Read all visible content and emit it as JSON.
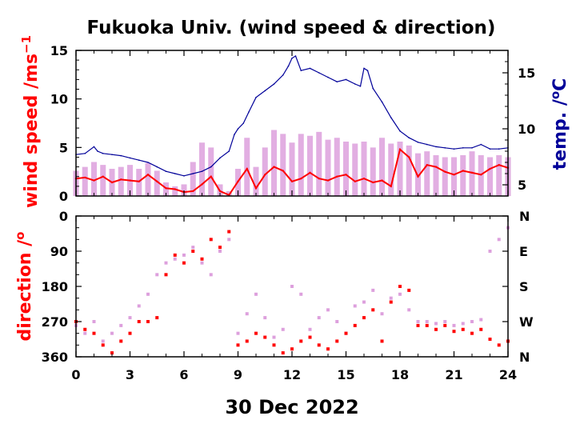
{
  "chart_data": [
    {
      "type": "line",
      "title": "Fukuoka Univ. (wind speed & direction)",
      "xlabel": "30 Dec 2022",
      "x_ticks": [
        "0",
        "3",
        "6",
        "9",
        "12",
        "15",
        "18",
        "21",
        "24"
      ],
      "xlim": [
        0,
        24
      ],
      "ylabel_left": "wind speed /ms",
      "ylabel_left_superscript": "−1",
      "ylim_left": [
        0,
        15
      ],
      "y_ticks_left": [
        "0",
        "5",
        "10",
        "15"
      ],
      "ylabel_right": "temp. /",
      "ylabel_right_superscript": "o",
      "ylabel_right_suffix": "C",
      "ylim_right": [
        4,
        17
      ],
      "y_ticks_right": [
        "5",
        "10",
        "15"
      ],
      "series": [
        {
          "color": "#ff0000",
          "axis": "left",
          "x": [
            0,
            0.5,
            1,
            1.5,
            2,
            2.5,
            3,
            3.5,
            4,
            4.5,
            5,
            5.5,
            6,
            6.5,
            7,
            7.5,
            8,
            8.5,
            9,
            9.5,
            10,
            10.5,
            11,
            11.5,
            12,
            12.5,
            13,
            13.5,
            14,
            14.5,
            15,
            15.5,
            16,
            16.5,
            17,
            17.5,
            18,
            18.5,
            19,
            19.5,
            20,
            20.5,
            21,
            21.5,
            22,
            22.5,
            23,
            23.5,
            24
          ],
          "values": [
            1.8,
            1.9,
            1.6,
            2.0,
            1.4,
            1.7,
            1.6,
            1.5,
            2.2,
            1.5,
            0.8,
            0.7,
            0.4,
            0.5,
            1.2,
            2.0,
            0.5,
            0.1,
            1.5,
            2.8,
            0.8,
            2.2,
            3.0,
            2.6,
            1.5,
            1.8,
            2.4,
            1.8,
            1.6,
            2.0,
            2.2,
            1.5,
            1.8,
            1.4,
            1.6,
            1.0,
            4.8,
            4.0,
            2.0,
            3.2,
            3.0,
            2.5,
            2.2,
            2.6,
            2.4,
            2.2,
            2.8,
            3.2,
            2.9
          ]
        },
        {
          "color": "#dda0dd",
          "axis": "left",
          "x": [
            0,
            0.5,
            1,
            1.5,
            2,
            2.5,
            3,
            3.5,
            4,
            4.5,
            5,
            5.5,
            6,
            6.5,
            7,
            7.5,
            8,
            8.5,
            9,
            9.5,
            10,
            10.5,
            11,
            11.5,
            12,
            12.5,
            13,
            13.5,
            14,
            14.5,
            15,
            15.5,
            16,
            16.5,
            17,
            17.5,
            18,
            18.5,
            19,
            19.5,
            20,
            20.5,
            21,
            21.5,
            22,
            22.5,
            23,
            23.5,
            24
          ],
          "values": [
            2.6,
            3.0,
            3.5,
            3.2,
            2.8,
            3.0,
            3.2,
            2.8,
            3.4,
            2.6,
            1.4,
            1.0,
            1.2,
            3.5,
            5.5,
            5.0,
            1.2,
            0.5,
            2.8,
            6.0,
            3.0,
            5.0,
            6.8,
            6.4,
            5.5,
            6.4,
            6.2,
            6.6,
            5.8,
            6.0,
            5.6,
            5.4,
            5.6,
            5.0,
            6.0,
            5.4,
            5.6,
            5.2,
            4.4,
            4.6,
            4.2,
            4.0,
            4.0,
            4.2,
            4.6,
            4.2,
            4.0,
            4.2,
            4.0
          ]
        },
        {
          "color": "#000099",
          "axis": "right",
          "x": [
            0,
            0.5,
            1,
            1.2,
            1.5,
            2,
            2.5,
            3,
            3.5,
            4,
            4.5,
            5,
            5.5,
            6,
            6.5,
            7,
            7.5,
            8,
            8.5,
            8.8,
            9,
            9.3,
            9.6,
            10,
            10.5,
            11,
            11.5,
            11.8,
            12,
            12.2,
            12.5,
            13,
            13.5,
            14,
            14.5,
            15,
            15.5,
            15.8,
            16,
            16.2,
            16.5,
            17,
            17.5,
            18,
            18.5,
            19,
            19.5,
            20,
            20.5,
            21,
            21.5,
            22,
            22.5,
            23,
            23.5,
            24
          ],
          "values": [
            7.7,
            7.8,
            8.4,
            8.0,
            7.8,
            7.7,
            7.6,
            7.4,
            7.2,
            7.0,
            6.6,
            6.2,
            6.0,
            5.8,
            6.0,
            6.2,
            6.6,
            7.4,
            8.0,
            9.5,
            10.0,
            10.5,
            11.5,
            12.8,
            13.4,
            14.0,
            14.8,
            15.6,
            16.3,
            16.5,
            15.2,
            15.4,
            15.0,
            14.6,
            14.2,
            14.4,
            14.0,
            13.8,
            15.4,
            15.2,
            13.6,
            12.4,
            11.0,
            9.8,
            9.2,
            8.8,
            8.6,
            8.4,
            8.3,
            8.2,
            8.3,
            8.3,
            8.6,
            8.2,
            8.2,
            8.3
          ]
        }
      ]
    },
    {
      "type": "scatter",
      "xlabel": "30 Dec 2022",
      "x_ticks": [
        "0",
        "3",
        "6",
        "9",
        "12",
        "15",
        "18",
        "21",
        "24"
      ],
      "xlim": [
        0,
        24
      ],
      "ylabel_left": "direction /",
      "ylabel_left_superscript": "o",
      "ylim_left": [
        0,
        360
      ],
      "y_inverted": true,
      "y_ticks_left": [
        "0",
        "90",
        "180",
        "270",
        "360"
      ],
      "y_ticks_right": [
        "N",
        "E",
        "S",
        "W",
        "N"
      ],
      "series": [
        {
          "color": "#dda0dd",
          "x": [
            0,
            0.5,
            1,
            1.5,
            2,
            2.5,
            3,
            3.5,
            4,
            4.5,
            5,
            5.5,
            6,
            6.5,
            7,
            7.5,
            8,
            8.5,
            9,
            9.5,
            10,
            10.5,
            11,
            11.5,
            12,
            12.5,
            13,
            13.5,
            14,
            14.5,
            15,
            15.5,
            16,
            16.5,
            17,
            17.5,
            18,
            18.5,
            19,
            19.5,
            20,
            20.5,
            21,
            21.5,
            22,
            22.5,
            23,
            23.5,
            24
          ],
          "values": [
            280,
            300,
            270,
            320,
            300,
            280,
            260,
            230,
            200,
            150,
            120,
            110,
            100,
            80,
            120,
            150,
            90,
            60,
            300,
            250,
            200,
            260,
            310,
            290,
            180,
            200,
            290,
            260,
            240,
            270,
            300,
            230,
            220,
            190,
            250,
            210,
            200,
            240,
            270,
            270,
            275,
            270,
            280,
            275,
            270,
            265,
            90,
            60,
            30
          ]
        },
        {
          "color": "#ff0000",
          "x": [
            0,
            0.5,
            1,
            1.5,
            2,
            2.5,
            3,
            3.5,
            4,
            4.5,
            5,
            5.5,
            6,
            6.5,
            7,
            7.5,
            8,
            8.5,
            9,
            9.5,
            10,
            10.5,
            11,
            11.5,
            12,
            12.5,
            13,
            13.5,
            14,
            14.5,
            15,
            15.5,
            16,
            16.5,
            17,
            17.5,
            18,
            18.5,
            19,
            19.5,
            20,
            20.5,
            21,
            21.5,
            22,
            22.5,
            23,
            23.5,
            24
          ],
          "values": [
            270,
            290,
            300,
            330,
            350,
            320,
            300,
            270,
            270,
            260,
            150,
            100,
            120,
            90,
            110,
            60,
            80,
            40,
            330,
            320,
            300,
            310,
            330,
            350,
            340,
            320,
            310,
            330,
            340,
            320,
            300,
            280,
            260,
            240,
            320,
            220,
            180,
            190,
            280,
            280,
            290,
            280,
            295,
            290,
            300,
            290,
            315,
            330,
            320
          ]
        }
      ]
    }
  ]
}
